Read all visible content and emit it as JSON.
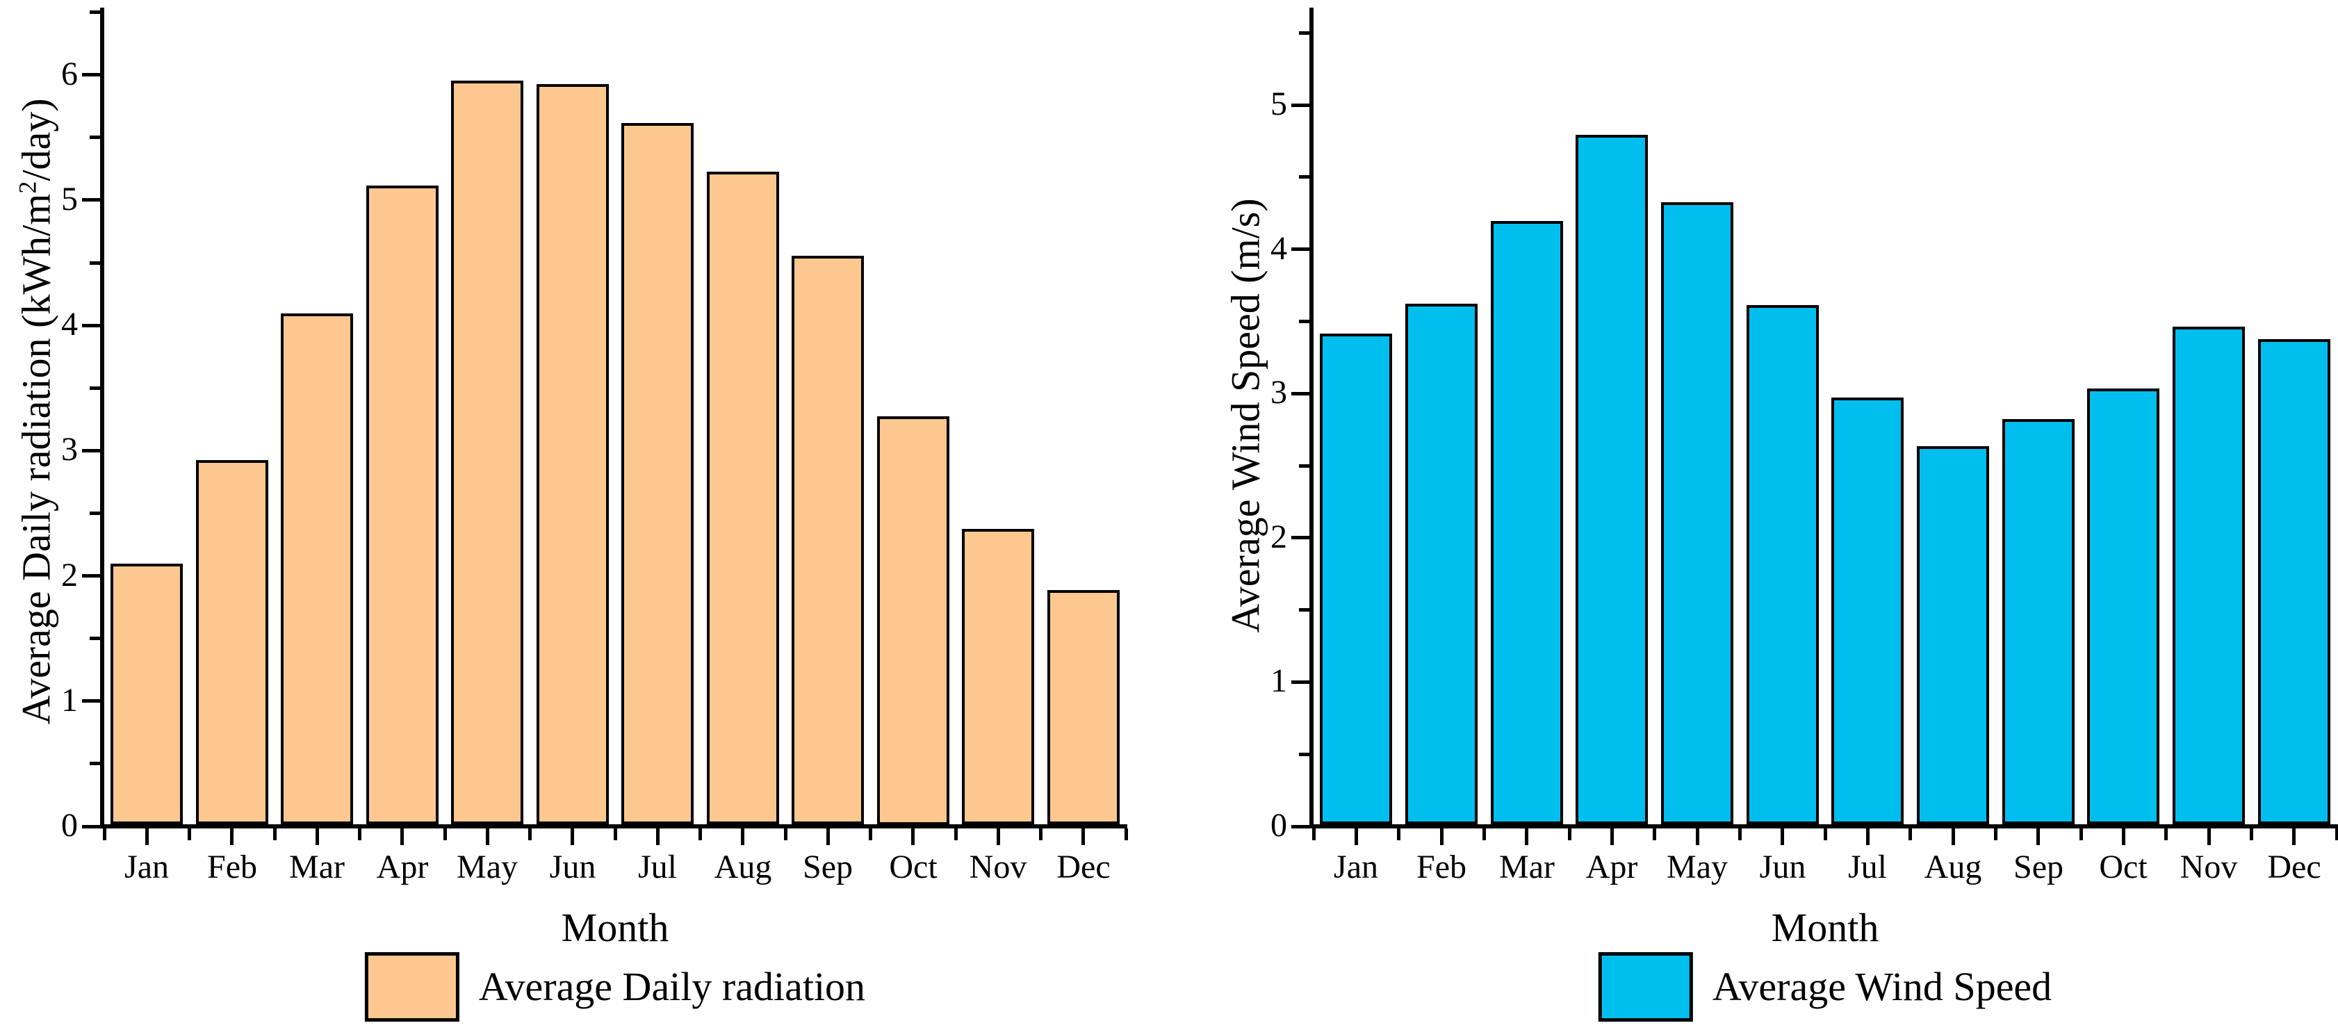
{
  "page": {
    "background": "#ffffff",
    "description": "Two-panel monthly bar chart figure"
  },
  "chart_data": [
    {
      "type": "bar",
      "panel": "left",
      "title": "",
      "xlabel": "Month",
      "ylabel": "Average Daily radiation (kWh/m²/day)",
      "ylabel_prefix": "Average Daily radiation (kWh/m",
      "ylabel_sup": "2",
      "ylabel_suffix": "/day)",
      "legend": "Average Daily radiation",
      "legend_position": "bottom-center",
      "categories": [
        "Jan",
        "Feb",
        "Mar",
        "Apr",
        "May",
        "Jun",
        "Jul",
        "Aug",
        "Sep",
        "Oct",
        "Nov",
        "Dec"
      ],
      "values": [
        2.08,
        2.91,
        4.08,
        5.1,
        5.94,
        5.91,
        5.6,
        5.21,
        4.54,
        3.26,
        2.36,
        1.87
      ],
      "ylim": [
        0,
        6.52
      ],
      "yticks": [
        0,
        1,
        2,
        3,
        4,
        5,
        6
      ],
      "minor_tick_step": 0.5,
      "grid": false,
      "bar_color": "#FCC890",
      "bar_edge_color": "#000000",
      "axis_color": "#000000"
    },
    {
      "type": "bar",
      "panel": "right",
      "title": "",
      "xlabel": "Month",
      "ylabel": "Average Wind Speed (m/s)",
      "ylabel_prefix": "Average Wind Speed (m/s)",
      "ylabel_sup": "",
      "ylabel_suffix": "",
      "legend": "Average Wind Speed",
      "legend_position": "bottom-center",
      "categories": [
        "Jan",
        "Feb",
        "Mar",
        "Apr",
        "May",
        "Jun",
        "Jul",
        "Aug",
        "Sep",
        "Oct",
        "Nov",
        "Dec"
      ],
      "values": [
        3.4,
        3.61,
        4.18,
        4.78,
        4.31,
        3.6,
        2.96,
        2.62,
        2.81,
        3.02,
        3.45,
        3.36
      ],
      "ylim": [
        0,
        5.66
      ],
      "yticks": [
        0,
        1,
        2,
        3,
        4,
        5
      ],
      "minor_tick_step": 0.5,
      "grid": false,
      "bar_color": "#00BFEF",
      "bar_edge_color": "#000000",
      "axis_color": "#000000"
    }
  ]
}
